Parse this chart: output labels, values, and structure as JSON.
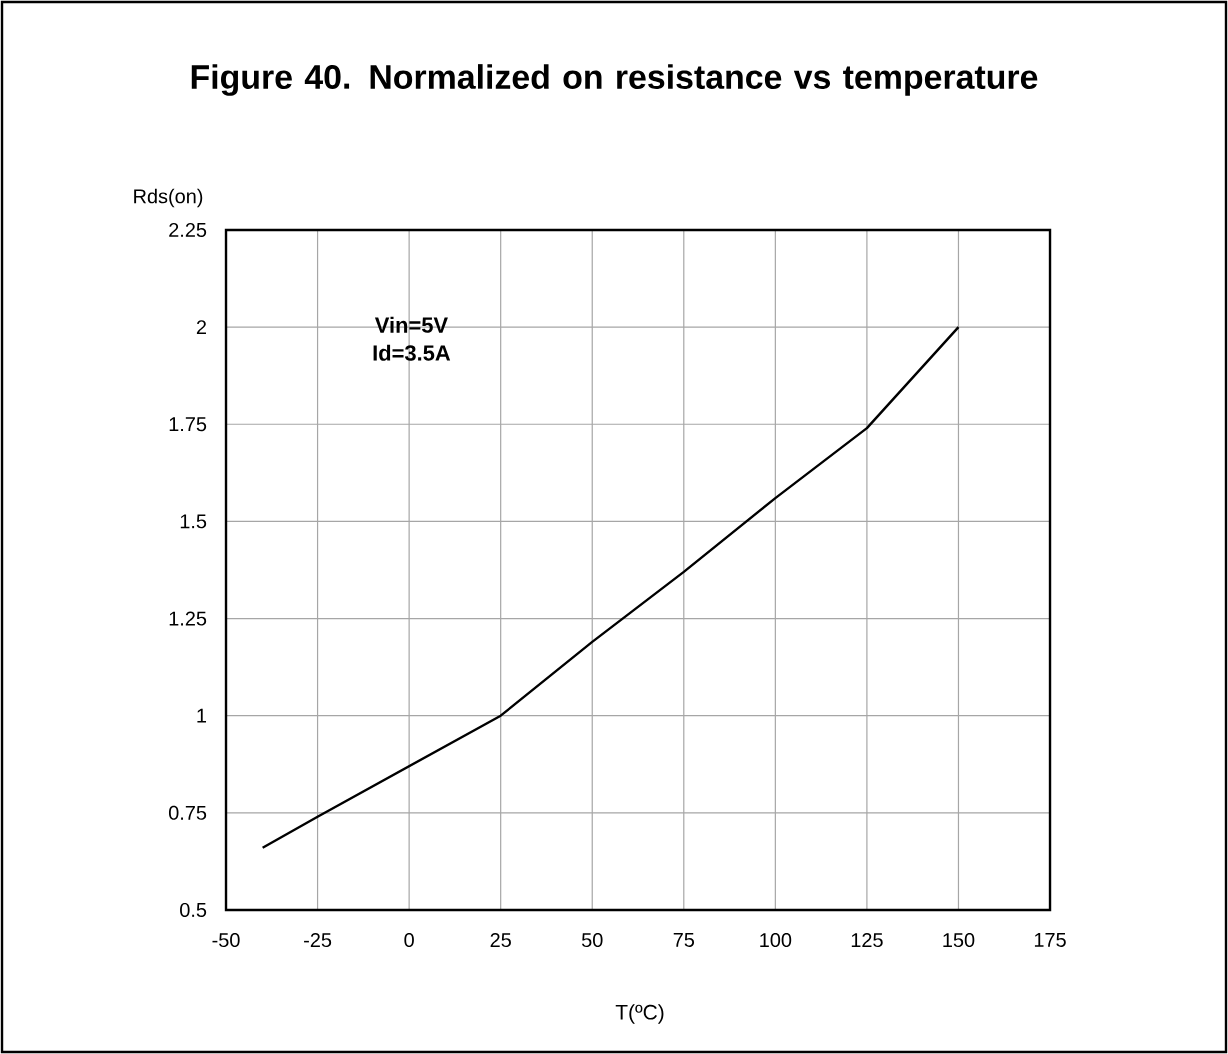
{
  "chart_data": {
    "type": "line",
    "title": "Figure 40. Normalized on resistance vs temperature",
    "xlabel": "T(ºC)",
    "ylabel": "Rds(on)",
    "annotations": [
      "Vin=5V",
      "Id=3.5A"
    ],
    "x": [
      -40,
      -25,
      0,
      25,
      50,
      75,
      100,
      125,
      150
    ],
    "series": [
      {
        "color": "#000000",
        "values": [
          0.66,
          0.74,
          0.87,
          1.0,
          1.19,
          1.37,
          1.56,
          1.74,
          2.0
        ]
      }
    ],
    "xlim": [
      -50,
      175
    ],
    "xticks": [
      -50,
      -25,
      0,
      25,
      50,
      75,
      100,
      125,
      150,
      175
    ],
    "ylim": [
      0.5,
      2.25
    ],
    "yticks": [
      0.5,
      0.75,
      1,
      1.25,
      1.5,
      1.75,
      2,
      2.25
    ],
    "grid": true,
    "marker": "none",
    "line_style": "solid"
  }
}
